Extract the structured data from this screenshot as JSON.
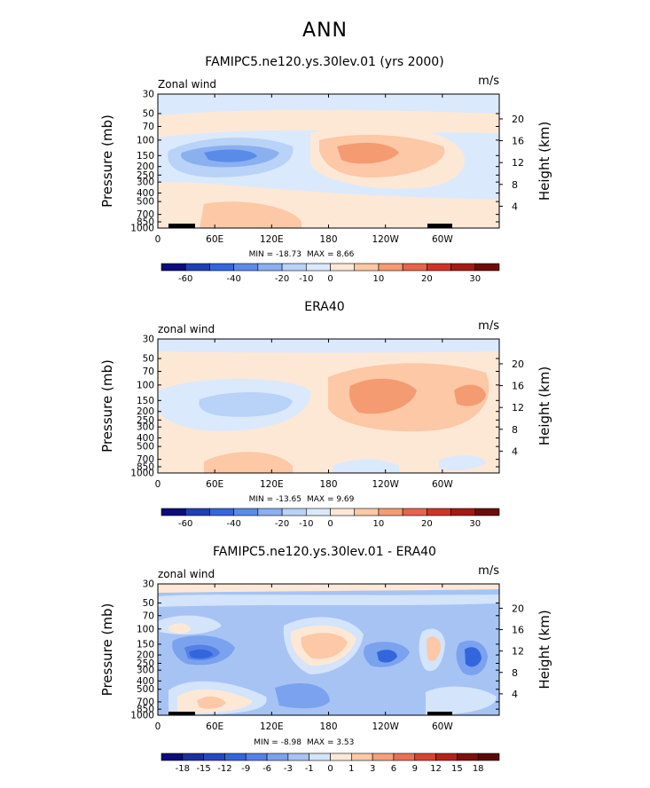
{
  "page_title": "ANN",
  "chart_data": [
    {
      "type": "contour",
      "title": "FAMIPC5.ne120.ys.30lev.01 (yrs 2000)",
      "left_label": "Zonal wind",
      "units": "m/s",
      "ylabel": "Pressure (mb)",
      "ylabel_right": "Height (km)",
      "pressure_ticks": [
        "30",
        "50",
        "70",
        "100",
        "150",
        "200",
        "250",
        "300",
        "400",
        "500",
        "700",
        "850",
        "1000"
      ],
      "height_ticks": [
        "20",
        "16",
        "12",
        "8",
        "4"
      ],
      "lon_ticks": [
        "0",
        "60E",
        "120E",
        "180",
        "120W",
        "60W"
      ],
      "min_label": "MIN = -18.73",
      "max_label": "MAX =   8.66",
      "min": -18.73,
      "max": 8.66,
      "colorbar_labels": [
        "-60",
        "-40",
        "-20",
        "-10",
        "0",
        "10",
        "20",
        "30"
      ],
      "colors": [
        "#0c0c7a",
        "#1f3fb4",
        "#3366dd",
        "#5b8be8",
        "#8bb0f0",
        "#b9d2f7",
        "#dbe9fc",
        "#fde8d6",
        "#fcc8a6",
        "#f49b72",
        "#e7654a",
        "#cf3326",
        "#a51a14",
        "#6d0c0a"
      ],
      "regions": [
        {
          "lon": 58,
          "p": 150,
          "value": -18,
          "size": [
            60,
            30
          ]
        },
        {
          "lon": 200,
          "p": 150,
          "value": 8,
          "size": [
            80,
            55
          ]
        },
        {
          "lon": 80,
          "p": 600,
          "value": 5,
          "size": [
            90,
            40
          ]
        }
      ]
    },
    {
      "type": "contour",
      "title": "ERA40",
      "left_label": "zonal wind",
      "units": "m/s",
      "ylabel": "Pressure (mb)",
      "ylabel_right": "Height (km)",
      "pressure_ticks": [
        "30",
        "50",
        "70",
        "100",
        "150",
        "200",
        "250",
        "300",
        "400",
        "500",
        "700",
        "850",
        "1000"
      ],
      "height_ticks": [
        "20",
        "16",
        "12",
        "8",
        "4"
      ],
      "lon_ticks": [
        "0",
        "60E",
        "120E",
        "180",
        "120W",
        "60W"
      ],
      "min_label": "MIN = -13.65",
      "max_label": "MAX =   9.69",
      "min": -13.65,
      "max": 9.69,
      "colorbar_labels": [
        "-60",
        "-40",
        "-20",
        "-10",
        "0",
        "10",
        "20",
        "30"
      ],
      "colors": [
        "#0c0c7a",
        "#1f3fb4",
        "#3366dd",
        "#5b8be8",
        "#8bb0f0",
        "#b9d2f7",
        "#dbe9fc",
        "#fde8d6",
        "#fcc8a6",
        "#f49b72",
        "#e7654a",
        "#cf3326",
        "#a51a14",
        "#6d0c0a"
      ],
      "regions": [
        {
          "lon": 80,
          "p": 150,
          "value": -13,
          "size": [
            70,
            40
          ]
        },
        {
          "lon": 235,
          "p": 150,
          "value": 9,
          "size": [
            80,
            55
          ]
        },
        {
          "lon": 330,
          "p": 120,
          "value": 7,
          "size": [
            30,
            30
          ]
        }
      ]
    },
    {
      "type": "contour",
      "title": "FAMIPC5.ne120.ys.30lev.01 - ERA40",
      "left_label": "zonal wind",
      "units": "m/s",
      "ylabel": "Pressure (mb)",
      "ylabel_right": "Height (km)",
      "pressure_ticks": [
        "30",
        "50",
        "70",
        "100",
        "150",
        "200",
        "250",
        "300",
        "400",
        "500",
        "700",
        "850",
        "1000"
      ],
      "height_ticks": [
        "20",
        "16",
        "12",
        "8",
        "4"
      ],
      "lon_ticks": [
        "0",
        "60E",
        "120E",
        "180",
        "120W",
        "60W"
      ],
      "min_label": "MIN = -8.98",
      "max_label": "MAX =   3.53",
      "min": -8.98,
      "max": 3.53,
      "colorbar_labels": [
        "-18",
        "-15",
        "-12",
        "-9",
        "-6",
        "-3",
        "-1",
        "0",
        "1",
        "3",
        "6",
        "9",
        "12",
        "15",
        "18"
      ],
      "colors": [
        "#0c0c7a",
        "#1a2fa0",
        "#2448c4",
        "#3366dd",
        "#5580e6",
        "#7aa2ee",
        "#a6c3f4",
        "#d3e4fb",
        "#fde8d6",
        "#fcc8a6",
        "#f5a07a",
        "#ea7052",
        "#d8422f",
        "#b6221a",
        "#7e0f0c",
        "#5a0806"
      ],
      "regions": [
        {
          "lon": 50,
          "p": 200,
          "value": -8.98,
          "size": [
            30,
            25
          ]
        },
        {
          "lon": 165,
          "p": 170,
          "value": 3.53,
          "size": [
            60,
            50
          ]
        },
        {
          "lon": 250,
          "p": 220,
          "value": -8,
          "size": [
            25,
            20
          ]
        },
        {
          "lon": 335,
          "p": 200,
          "value": -8,
          "size": [
            18,
            25
          ]
        }
      ]
    }
  ]
}
